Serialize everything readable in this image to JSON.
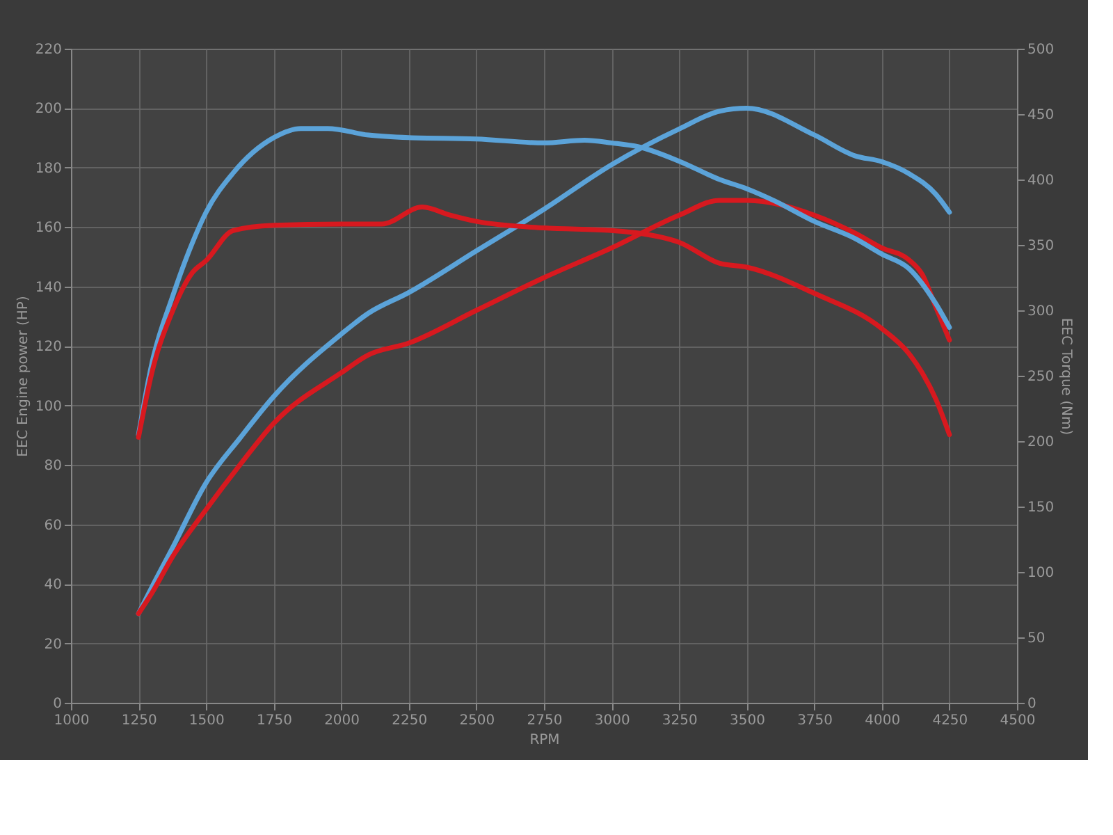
{
  "chart_data": {
    "type": "line",
    "xlabel": "RPM",
    "ylabel": "EEC Engine power (HP)",
    "y2label": "EEC Torque (Nm)",
    "xlim": [
      1000,
      4500
    ],
    "xticks": [
      1000,
      1250,
      1500,
      1750,
      2000,
      2250,
      2500,
      2750,
      3000,
      3250,
      3500,
      3750,
      4000,
      4250,
      4500
    ],
    "ylim": [
      0,
      220
    ],
    "yticks": [
      0,
      20,
      40,
      60,
      80,
      100,
      120,
      140,
      160,
      180,
      200,
      220
    ],
    "y2lim": [
      0,
      500
    ],
    "y2ticks": [
      0,
      50,
      100,
      150,
      200,
      250,
      300,
      350,
      400,
      450,
      500
    ],
    "grid": true,
    "legend": false,
    "marker": "none",
    "line_style": "solid",
    "series": [
      {
        "color": "#5ba3d9",
        "x": [
          1250,
          1300,
          1375,
          1500,
          1625,
          1750,
          2000,
          2100,
          2250,
          2500,
          2750,
          3000,
          3250,
          3400,
          3500,
          3750,
          3900,
          4000,
          4100,
          4200,
          4250
        ],
        "values": [
          30,
          39,
          52,
          74,
          89,
          103,
          124,
          131,
          138,
          152,
          166,
          181,
          193,
          199,
          200,
          191,
          184,
          182,
          178,
          171,
          165
        ]
      },
      {
        "color": "#d7191f",
        "x": [
          1250,
          1300,
          1375,
          1500,
          1625,
          1750,
          2000,
          2100,
          2250,
          2500,
          2750,
          3000,
          3250,
          3400,
          3500,
          3750,
          3900,
          4000,
          4100,
          4150,
          4200,
          4250
        ],
        "values": [
          30,
          37,
          49,
          65,
          80,
          94,
          111,
          117,
          121,
          132,
          143,
          153,
          164,
          169,
          169,
          164,
          158,
          153,
          149,
          144,
          133,
          122
        ]
      },
      {
        "color": "#5ba3d9",
        "axis": "y2",
        "x": [
          1250,
          1300,
          1375,
          1450,
          1500,
          1600,
          1750,
          1850,
          1950,
          2100,
          2250,
          2500,
          2750,
          2900,
          3000,
          3100,
          3250,
          3400,
          3500,
          3600,
          3750,
          3900,
          4000,
          4100,
          4200,
          4250
        ],
        "values": [
          205,
          260,
          310,
          352,
          375,
          405,
          432,
          439,
          439,
          434,
          432,
          431,
          428,
          430,
          428,
          425,
          414,
          400,
          393,
          384,
          368,
          355,
          343,
          332,
          305,
          287
        ]
      },
      {
        "color": "#d7191f",
        "axis": "y2",
        "x": [
          1250,
          1300,
          1375,
          1450,
          1500,
          1600,
          1750,
          2000,
          2150,
          2300,
          2400,
          2500,
          2750,
          3000,
          3100,
          3250,
          3400,
          3500,
          3750,
          4000,
          4100,
          4150,
          4200,
          4250
        ],
        "values": [
          203,
          253,
          299,
          329,
          338,
          361,
          365,
          366,
          366,
          379,
          373,
          368,
          363,
          361,
          359,
          352,
          336,
          333,
          313,
          286,
          267,
          252,
          232,
          205
        ]
      }
    ]
  }
}
